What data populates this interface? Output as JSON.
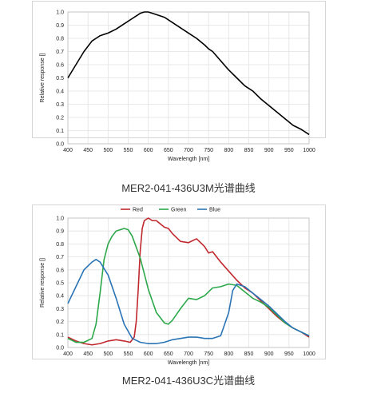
{
  "captions": {
    "top": "MER2-041-436U3M光谱曲线",
    "bottom": "MER2-041-436U3C光谱曲线"
  },
  "chart_data": [
    {
      "type": "line",
      "title": "",
      "xlabel": "Wavelength [nm]",
      "ylabel": "Relative response []",
      "xlim": [
        400,
        1000
      ],
      "ylim": [
        0,
        1.0
      ],
      "xticks": [
        "400",
        "450",
        "500",
        "550",
        "600",
        "650",
        "700",
        "750",
        "800",
        "850",
        "900",
        "950",
        "1000"
      ],
      "yticks": [
        "0.0",
        "0.1",
        "0.2",
        "0.3",
        "0.4",
        "0.5",
        "0.6",
        "0.7",
        "0.8",
        "0.9",
        "1.0"
      ],
      "grid": true,
      "series": [
        {
          "color": "#000000",
          "x": [
            400,
            420,
            440,
            460,
            470,
            480,
            500,
            520,
            540,
            560,
            580,
            590,
            600,
            620,
            640,
            660,
            680,
            700,
            720,
            740,
            750,
            760,
            780,
            800,
            820,
            840,
            860,
            880,
            900,
            920,
            940,
            960,
            980,
            1000
          ],
          "y": [
            0.5,
            0.6,
            0.7,
            0.78,
            0.8,
            0.82,
            0.84,
            0.87,
            0.91,
            0.95,
            0.99,
            1.0,
            1.0,
            0.98,
            0.96,
            0.92,
            0.88,
            0.84,
            0.8,
            0.75,
            0.72,
            0.7,
            0.63,
            0.56,
            0.5,
            0.44,
            0.4,
            0.34,
            0.29,
            0.24,
            0.19,
            0.14,
            0.11,
            0.07
          ]
        }
      ]
    },
    {
      "type": "line",
      "title": "",
      "xlabel": "Wavelength [nm]",
      "ylabel": "Relative response []",
      "xlim": [
        400,
        1000
      ],
      "ylim": [
        0,
        1.0
      ],
      "xticks": [
        "400",
        "450",
        "500",
        "550",
        "600",
        "650",
        "700",
        "750",
        "800",
        "850",
        "900",
        "950",
        "1000"
      ],
      "yticks": [
        "0.0",
        "0.1",
        "0.2",
        "0.3",
        "0.4",
        "0.5",
        "0.6",
        "0.7",
        "0.8",
        "0.9",
        "1.0"
      ],
      "grid": true,
      "legend": "top-center",
      "series": [
        {
          "name": "Red",
          "color": "#c0282d",
          "x": [
            400,
            420,
            440,
            460,
            480,
            500,
            520,
            540,
            555,
            565,
            570,
            575,
            580,
            585,
            590,
            600,
            610,
            620,
            640,
            650,
            660,
            680,
            700,
            720,
            740,
            750,
            760,
            770,
            780,
            800,
            820,
            840,
            860,
            880,
            900,
            920,
            940,
            960,
            980,
            1000
          ],
          "y": [
            0.08,
            0.05,
            0.03,
            0.02,
            0.03,
            0.05,
            0.06,
            0.05,
            0.04,
            0.08,
            0.2,
            0.45,
            0.75,
            0.92,
            0.98,
            1.0,
            0.98,
            0.98,
            0.93,
            0.92,
            0.88,
            0.82,
            0.81,
            0.84,
            0.78,
            0.73,
            0.74,
            0.7,
            0.66,
            0.59,
            0.52,
            0.46,
            0.42,
            0.36,
            0.3,
            0.24,
            0.19,
            0.15,
            0.12,
            0.08
          ]
        },
        {
          "name": "Green",
          "color": "#2ca84a",
          "x": [
            400,
            420,
            440,
            460,
            470,
            480,
            490,
            500,
            510,
            520,
            540,
            550,
            560,
            580,
            600,
            620,
            640,
            650,
            660,
            680,
            700,
            720,
            740,
            760,
            780,
            800,
            820,
            840,
            860,
            880,
            900,
            920,
            940,
            960,
            980,
            1000
          ],
          "y": [
            0.07,
            0.04,
            0.04,
            0.07,
            0.18,
            0.42,
            0.68,
            0.8,
            0.86,
            0.9,
            0.92,
            0.91,
            0.86,
            0.69,
            0.45,
            0.27,
            0.19,
            0.18,
            0.21,
            0.3,
            0.38,
            0.37,
            0.4,
            0.46,
            0.47,
            0.49,
            0.48,
            0.43,
            0.38,
            0.35,
            0.31,
            0.25,
            0.19,
            0.15,
            0.12,
            0.09
          ]
        },
        {
          "name": "Blue",
          "color": "#2a74b6",
          "x": [
            400,
            420,
            440,
            460,
            470,
            480,
            500,
            520,
            540,
            560,
            580,
            600,
            620,
            640,
            660,
            680,
            700,
            720,
            740,
            760,
            780,
            800,
            810,
            820,
            840,
            860,
            880,
            900,
            920,
            940,
            960,
            980,
            1000
          ],
          "y": [
            0.34,
            0.47,
            0.6,
            0.66,
            0.68,
            0.66,
            0.56,
            0.38,
            0.18,
            0.07,
            0.04,
            0.03,
            0.03,
            0.04,
            0.06,
            0.07,
            0.08,
            0.08,
            0.07,
            0.07,
            0.09,
            0.27,
            0.44,
            0.49,
            0.47,
            0.42,
            0.37,
            0.32,
            0.26,
            0.2,
            0.15,
            0.12,
            0.09
          ]
        }
      ]
    }
  ]
}
